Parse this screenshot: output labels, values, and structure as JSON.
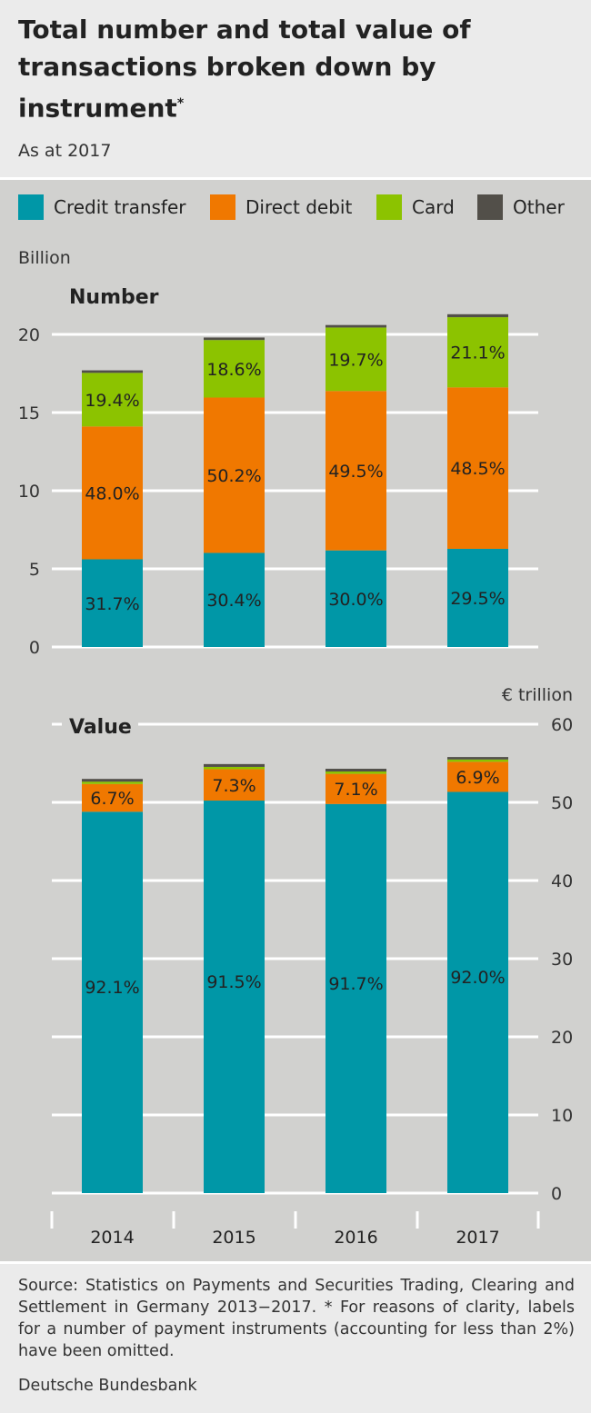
{
  "header": {
    "title": "Total number and total value of transactions broken down by instrument",
    "title_mark": "*",
    "subtitle": "As at 2017"
  },
  "legend": [
    {
      "label": "Credit transfer",
      "color": "#0097a7"
    },
    {
      "label": "Direct debit",
      "color": "#f07800"
    },
    {
      "label": "Card",
      "color": "#8cc300"
    },
    {
      "label": "Other",
      "color": "#524f49"
    }
  ],
  "chart_data": [
    {
      "type": "bar",
      "stacked": true,
      "title": "Number",
      "ylabel": "Billion",
      "axis_side": "left",
      "ylim": [
        0,
        20
      ],
      "yticks": [
        0,
        5,
        10,
        15,
        20
      ],
      "grid": true,
      "categories": [
        "2014",
        "2015",
        "2016",
        "2017"
      ],
      "series": [
        {
          "name": "Credit transfer",
          "values": [
            5.61,
            6.02,
            6.18,
            6.28
          ],
          "labels": [
            "31.7%",
            "30.4%",
            "30.0%",
            "29.5%"
          ]
        },
        {
          "name": "Direct debit",
          "values": [
            8.5,
            9.94,
            10.2,
            10.33
          ],
          "labels": [
            "48.0%",
            "50.2%",
            "49.5%",
            "48.5%"
          ]
        },
        {
          "name": "Card",
          "values": [
            3.43,
            3.68,
            4.06,
            4.49
          ],
          "labels": [
            "19.4%",
            "18.6%",
            "19.7%",
            "21.1%"
          ]
        },
        {
          "name": "Other",
          "values": [
            0.16,
            0.16,
            0.16,
            0.19
          ],
          "labels": [
            "",
            "",
            "",
            ""
          ]
        }
      ]
    },
    {
      "type": "bar",
      "stacked": true,
      "title": "Value",
      "ylabel": "€ trillion",
      "axis_side": "right",
      "ylim": [
        0,
        60
      ],
      "yticks": [
        0,
        10,
        20,
        30,
        40,
        50,
        60
      ],
      "grid": true,
      "categories": [
        "2014",
        "2015",
        "2016",
        "2017"
      ],
      "series": [
        {
          "name": "Credit transfer",
          "values": [
            48.8,
            50.23,
            49.79,
            51.34
          ],
          "labels": [
            "92.1%",
            "91.5%",
            "91.7%",
            "92.0%"
          ]
        },
        {
          "name": "Direct debit",
          "values": [
            3.55,
            4.01,
            3.86,
            3.85
          ],
          "labels": [
            "6.7%",
            "7.3%",
            "7.1%",
            "6.9%"
          ]
        },
        {
          "name": "Card",
          "values": [
            0.3,
            0.3,
            0.3,
            0.3
          ],
          "labels": [
            "",
            "",
            "",
            ""
          ]
        },
        {
          "name": "Other",
          "values": [
            0.35,
            0.36,
            0.35,
            0.31
          ],
          "labels": [
            "",
            "",
            "",
            ""
          ]
        }
      ]
    }
  ],
  "footer": {
    "source": "Source: Statistics on Payments and Securities Trading, Clearing and Settlement in Germany 2013−2017. * For reasons of clarity, labels for a number of payment instruments (accounting for less than 2%) have been omitted.",
    "org": "Deutsche Bundesbank"
  }
}
